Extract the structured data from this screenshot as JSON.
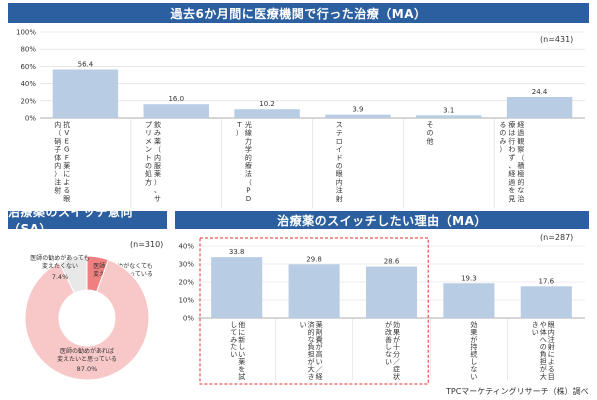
{
  "titles": {
    "top": "過去6か月間に医療機関で行った治療（MA）",
    "left": "治療薬のスイッチ意向（SA）",
    "right": "治療薬のスイッチしたい理由（MA）"
  },
  "n_notes": {
    "top": "(n=431)",
    "left": "(n=310)",
    "right": "(n=287)"
  },
  "credit": "TPCマーケティングリサーチ（株）調べ",
  "chart_data": [
    {
      "type": "bar",
      "title": "過去6か月間に医療機関で行った治療（MA）",
      "ylim": [
        0,
        100
      ],
      "yticks": [
        "0%",
        "20%",
        "40%",
        "60%",
        "80%",
        "100%"
      ],
      "categories": [
        "抗VEGF薬による眼内（硝子体内）注射",
        "飲み薬（内服薬）、サプリメントの処方",
        "光線力学的療法（PDT）",
        "ステロイドの眼内注射",
        "その他",
        "経過観察（積極的な治療は行わず、経過を見るのみ）"
      ],
      "values": [
        56.4,
        16.0,
        10.2,
        3.9,
        3.1,
        24.4
      ],
      "value_labels": [
        "56.4",
        "16.0",
        "10.2",
        "3.9",
        "3.1",
        "24.4"
      ],
      "bar_color": "#b8cce4",
      "grid": true
    },
    {
      "type": "pie",
      "title": "治療薬のスイッチ意向（SA）",
      "slices": [
        {
          "label1": "医師の勧めがなくても",
          "label2": "変えたいと思っている",
          "value": 5.6,
          "value_label": "5.6%",
          "color": "#f08080"
        },
        {
          "label1": "医師の勧めがあれば",
          "label2": "変えたいと思っている",
          "value": 87.0,
          "value_label": "87.0%",
          "color": "#f8c8c8"
        },
        {
          "label1": "医師の勧めがあっても",
          "label2": "変えたくない",
          "value": 7.4,
          "value_label": "7.4%",
          "color": "#e8e8e8"
        }
      ]
    },
    {
      "type": "bar",
      "title": "治療薬のスイッチしたい理由（MA）",
      "ylim": [
        0,
        40
      ],
      "yticks": [
        "0%",
        "10%",
        "20%",
        "30%",
        "40%"
      ],
      "categories": [
        "他に新しい薬を試してみたい",
        "薬剤費が高い／経済的な負担が大きい",
        "効果が十分／症状が改善しない",
        "効果が持続しない",
        "眼内注射による目や体への負担が大きい"
      ],
      "values": [
        33.8,
        29.8,
        28.6,
        19.3,
        17.6
      ],
      "value_labels": [
        "33.8",
        "29.8",
        "28.6",
        "19.3",
        "17.6"
      ],
      "highlighted": [
        true,
        true,
        true,
        false,
        false
      ],
      "bar_color": "#b8cce4",
      "highlight_color": "#e03030",
      "grid": true
    }
  ]
}
